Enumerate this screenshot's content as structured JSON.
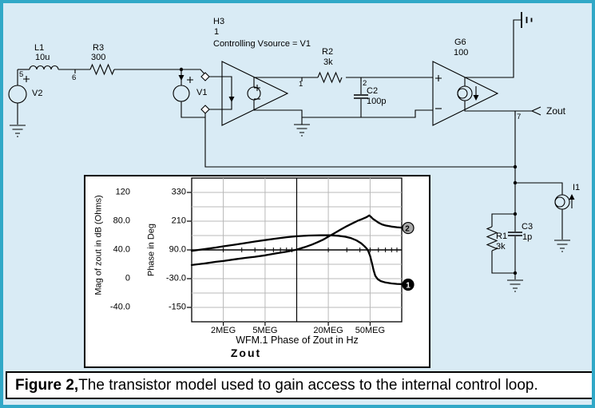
{
  "caption": {
    "bold": "Figure 2,",
    "text": " The transistor model used to gain access to the internal control loop."
  },
  "schematic": {
    "v2": {
      "ref": "V2"
    },
    "l1": {
      "ref": "L1",
      "val": "10u"
    },
    "r3": {
      "ref": "R3",
      "val": "300"
    },
    "v1": {
      "ref": "V1"
    },
    "h3": {
      "ref": "H3",
      "gain": "1",
      "note": "Controlling Vsource = V1"
    },
    "r2": {
      "ref": "R2",
      "val": "3k"
    },
    "c2": {
      "ref": "C2",
      "val": "100p"
    },
    "g6": {
      "ref": "G6",
      "val": "100"
    },
    "i1": {
      "ref": "I1"
    },
    "r1": {
      "ref": "R1",
      "val": "3k"
    },
    "c3": {
      "ref": "C3",
      "val": "1p"
    },
    "zout": {
      "label": "Zout"
    },
    "nodes": {
      "n5": "5",
      "n6": "6",
      "n1": "1",
      "n2": "2",
      "n7": "7"
    }
  },
  "chart_data": {
    "type": "line",
    "x_scale": "log",
    "x_range_hz": [
      1000000,
      100000000
    ],
    "x_axis_label": "WFM.1  Phase of Zout in Hz",
    "title_below": "Zout",
    "x_ticks": [
      {
        "f": 2,
        "label": "2MEG"
      },
      {
        "f": 5,
        "label": "5MEG"
      },
      {
        "f": 20,
        "label": "20MEG"
      },
      {
        "f": 50,
        "label": "50MEG"
      }
    ],
    "left_axis": {
      "title": "Mag of zout in dB (Ohms)",
      "range_db": [
        -60,
        140
      ],
      "ticks": [
        {
          "v": 120,
          "label": "120"
        },
        {
          "v": 80,
          "label": "80.0"
        },
        {
          "v": 40,
          "label": "40.0"
        },
        {
          "v": 0,
          "label": "0"
        },
        {
          "v": -40,
          "label": "-40.0"
        }
      ]
    },
    "phase_axis": {
      "title": "Phase in Deg",
      "range_deg": [
        -210,
        390
      ],
      "ticks": [
        {
          "v": 330,
          "label": "330"
        },
        {
          "v": 210,
          "label": "210"
        },
        {
          "v": 90,
          "label": "90.0"
        },
        {
          "v": -30,
          "label": "-30.0"
        },
        {
          "v": -150,
          "label": "-150"
        }
      ]
    },
    "grid": {
      "v_light_meg": [
        2,
        5,
        20,
        50
      ],
      "v_dark_meg": [
        10
      ],
      "h_light_deg": [
        330,
        270,
        210,
        150,
        30,
        -30,
        -90,
        -150
      ],
      "h_dark_deg": [
        90
      ],
      "axis_minor_ticks_meg": [
        2,
        3,
        4,
        5,
        6,
        7,
        8,
        9,
        20,
        30,
        40,
        50,
        60,
        70,
        80,
        90
      ]
    },
    "series": [
      {
        "name": "Phase of Zout",
        "marker": "1",
        "axis": "deg",
        "points": [
          [
            1,
            86
          ],
          [
            1.3,
            93
          ],
          [
            1.7,
            100
          ],
          [
            2,
            105
          ],
          [
            2.6,
            112
          ],
          [
            3.3,
            119
          ],
          [
            4,
            125
          ],
          [
            5,
            131
          ],
          [
            6.5,
            138
          ],
          [
            8,
            143
          ],
          [
            10,
            147
          ],
          [
            13,
            150
          ],
          [
            17,
            151
          ],
          [
            21,
            151
          ],
          [
            25,
            149
          ],
          [
            29,
            145
          ],
          [
            33,
            139
          ],
          [
            37,
            130
          ],
          [
            41,
            118
          ],
          [
            44,
            106
          ],
          [
            46.5,
            95
          ],
          [
            48,
            85
          ],
          [
            50,
            65
          ],
          [
            52,
            35
          ],
          [
            54,
            5
          ],
          [
            56,
            -18
          ],
          [
            59,
            -32
          ],
          [
            63,
            -40
          ],
          [
            70,
            -46
          ],
          [
            80,
            -50
          ],
          [
            90,
            -52
          ],
          [
            100,
            -53
          ]
        ]
      },
      {
        "name": "Mag of Zout",
        "marker": "2",
        "axis": "db",
        "points": [
          [
            1,
            19
          ],
          [
            1.3,
            21
          ],
          [
            1.7,
            23.5
          ],
          [
            2,
            24.5
          ],
          [
            2.6,
            27
          ],
          [
            3.3,
            29
          ],
          [
            4,
            30.5
          ],
          [
            5,
            32.5
          ],
          [
            6.5,
            35.5
          ],
          [
            8,
            37.5
          ],
          [
            10,
            40.5
          ],
          [
            12,
            44
          ],
          [
            14,
            47.5
          ],
          [
            16,
            51
          ],
          [
            18,
            54.5
          ],
          [
            20,
            58.5
          ],
          [
            23,
            63.5
          ],
          [
            26,
            68
          ],
          [
            30,
            73
          ],
          [
            34,
            77
          ],
          [
            38,
            80.5
          ],
          [
            42,
            83
          ],
          [
            46,
            85.5
          ],
          [
            49,
            88
          ],
          [
            51,
            86
          ],
          [
            53,
            83.5
          ],
          [
            56,
            81
          ],
          [
            60,
            78
          ],
          [
            65,
            75.5
          ],
          [
            70,
            74
          ],
          [
            80,
            72.5
          ],
          [
            90,
            71.5
          ],
          [
            100,
            71
          ]
        ]
      }
    ],
    "markers": [
      {
        "label": "1",
        "axis": "deg",
        "value": -55
      },
      {
        "label": "2",
        "axis": "db",
        "value": 70.5
      }
    ]
  }
}
